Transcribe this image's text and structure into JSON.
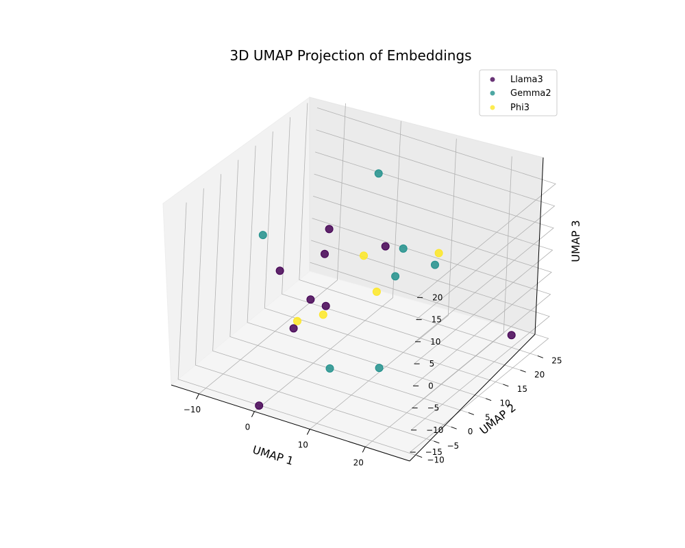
{
  "chart_data": {
    "type": "scatter",
    "title": "3D UMAP Projection of Embeddings",
    "xlabel": "UMAP 1",
    "ylabel": "UMAP 2",
    "zlabel": "UMAP 3",
    "xlim": [
      -15,
      28
    ],
    "ylim": [
      -12,
      28
    ],
    "zlim": [
      -17,
      23
    ],
    "x_ticks": [
      -10,
      0,
      10,
      20
    ],
    "y_ticks": [
      -10,
      -5,
      0,
      5,
      10,
      15,
      20,
      25
    ],
    "z_ticks": [
      -15,
      -10,
      -5,
      0,
      5,
      10,
      15,
      20
    ],
    "legend_position": "top-right",
    "grid": true,
    "projection": "3d",
    "series": [
      {
        "name": "Llama3",
        "color": "#440154",
        "points": [
          [
            -5.5,
            3,
            3
          ],
          [
            -3,
            13,
            7
          ],
          [
            -3,
            12,
            2
          ],
          [
            -1,
            5,
            -3
          ],
          [
            -2,
            2,
            -8
          ],
          [
            0,
            8,
            -6
          ],
          [
            -1,
            -9,
            -18
          ],
          [
            22,
            27,
            -16
          ],
          [
            3,
            20,
            1
          ]
        ]
      },
      {
        "name": "Gemma2",
        "color": "#21918c",
        "points": [
          [
            -10,
            5,
            8
          ],
          [
            0,
            22,
            15
          ],
          [
            5,
            22,
            0
          ],
          [
            3,
            5,
            -17
          ],
          [
            10,
            8,
            -16
          ],
          [
            9,
            25,
            -4
          ],
          [
            5,
            20,
            -5
          ]
        ]
      },
      {
        "name": "Phi3",
        "color": "#fde725",
        "points": [
          [
            1,
            17,
            0
          ],
          [
            9,
            26,
            -2
          ],
          [
            3,
            18,
            -8
          ],
          [
            -1,
            9,
            -9
          ],
          [
            -2,
            3,
            -7
          ]
        ]
      }
    ]
  }
}
